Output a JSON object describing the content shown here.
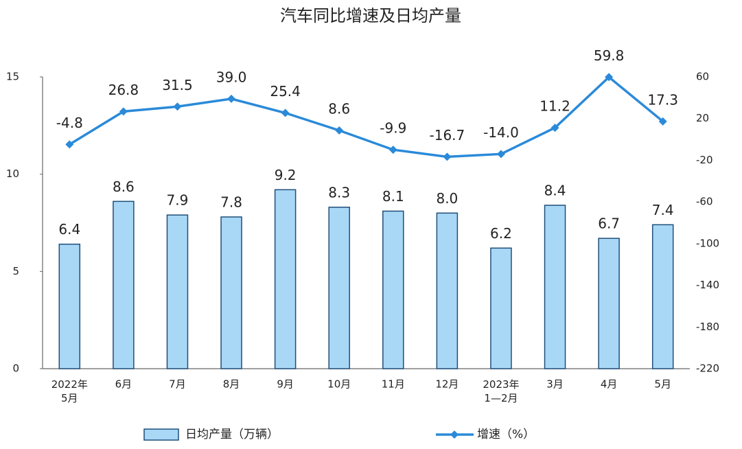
{
  "chart_data": {
    "type": "combo",
    "title": "汽车同比增速及日均产量",
    "categories": [
      "2022年\n5月",
      "6月",
      "7月",
      "8月",
      "9月",
      "10月",
      "11月",
      "12月",
      "2023年\n1—2月",
      "3月",
      "4月",
      "5月"
    ],
    "series": [
      {
        "name": "日均产量（万辆）",
        "type": "bar",
        "color": "#a9d8f7",
        "edge": "#1f4e79",
        "values": [
          6.4,
          8.6,
          7.9,
          7.8,
          9.2,
          8.3,
          8.1,
          8,
          6.2,
          8.4,
          6.7,
          7.4
        ],
        "value_labels": [
          "6.4",
          "8.6",
          "7.9",
          "7.8",
          "9.2",
          "8.3",
          "8.1",
          "8.0",
          "6.2",
          "8.4",
          "6.7",
          "7.4"
        ]
      },
      {
        "name": "增速（%）",
        "type": "line",
        "axis": "y2",
        "color": "#2a8ad9",
        "values": [
          -4.8,
          26.8,
          31.5,
          39,
          25.4,
          8.6,
          -9.9,
          -16.7,
          -14,
          11.2,
          59.8,
          17.3
        ],
        "value_labels": [
          "-4.8",
          "26.8",
          "31.5",
          "39.0",
          "25.4",
          "8.6",
          "-9.9",
          "-16.7",
          "-14.0",
          "11.2",
          "59.8",
          "17.3"
        ]
      }
    ],
    "ylim": [
      0,
      15
    ],
    "yticks": [
      0,
      5,
      10,
      15
    ],
    "y2lim": [
      -220,
      60
    ],
    "y2ticks": [
      -220,
      -180,
      -140,
      -100,
      -60,
      -20,
      20,
      60
    ]
  }
}
